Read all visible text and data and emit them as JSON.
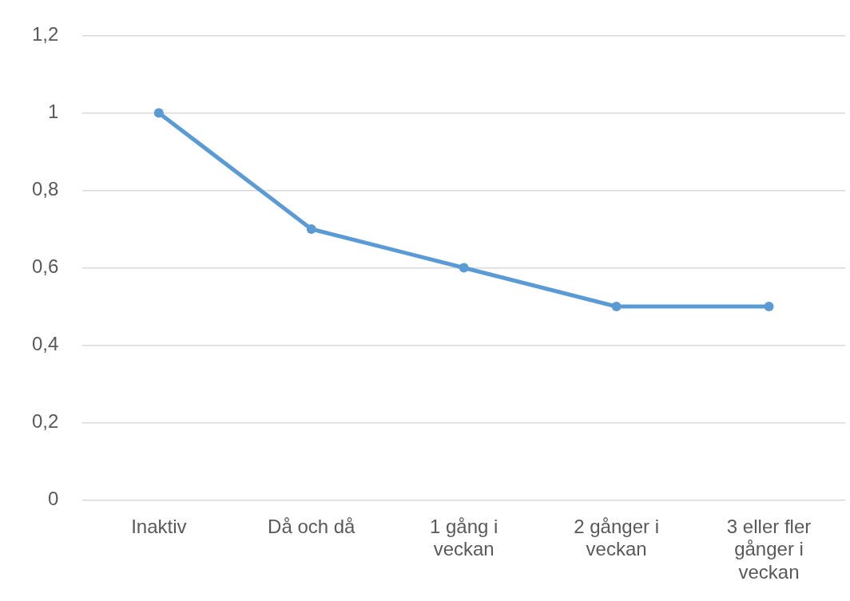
{
  "chart_data": {
    "type": "line",
    "categories": [
      "Inaktiv",
      "Då och då",
      "1 gång i veckan",
      "2 gånger i veckan",
      "3 eller fler gånger i veckan"
    ],
    "series": [
      {
        "color": "#5b9bd5",
        "values": [
          1,
          0.7,
          0.6,
          0.5,
          0.5
        ]
      }
    ],
    "ylim": [
      0,
      1.2
    ],
    "yticks": [
      0,
      {
        "value": 0.2,
        "label": "0,2"
      },
      {
        "value": 0.4,
        "label": "0,4"
      },
      {
        "value": 0.6,
        "label": "0,6"
      },
      {
        "value": 0.8,
        "label": "0,8"
      },
      1,
      {
        "value": 1.2,
        "label": "1,2"
      }
    ],
    "grid": "y",
    "legend": false,
    "marker": "circle",
    "line_style": "solid"
  }
}
